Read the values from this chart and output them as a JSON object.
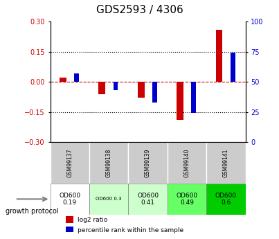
{
  "title": "GDS2593 / 4306",
  "samples": [
    "GSM99137",
    "GSM99138",
    "GSM99139",
    "GSM99140",
    "GSM99141"
  ],
  "log2_ratios": [
    0.02,
    -0.06,
    -0.08,
    -0.19,
    0.26
  ],
  "percentile_ranks": [
    57,
    43,
    33,
    24,
    74
  ],
  "ylim_left": [
    -0.3,
    0.3
  ],
  "ylim_right": [
    0,
    100
  ],
  "yticks_left": [
    -0.3,
    -0.15,
    0,
    0.15,
    0.3
  ],
  "yticks_right": [
    0,
    25,
    50,
    75,
    100
  ],
  "bar_width": 0.35,
  "red_color": "#cc0000",
  "blue_color": "#0000cc",
  "dot_line_color": "#999999",
  "zero_line_color": "#cc0000",
  "growth_protocol_label": "growth protocol",
  "protocol_values": [
    "OD600\n0.19",
    "OD600 0.3",
    "OD600\n0.41",
    "OD600\n0.49",
    "OD600\n0.6"
  ],
  "protocol_bg_colors": [
    "#ffffff",
    "#ccffcc",
    "#ccffcc",
    "#66ff66",
    "#00cc00"
  ],
  "table_header_bg": "#cccccc",
  "legend_red_label": "log2 ratio",
  "legend_blue_label": "percentile rank within the sample"
}
